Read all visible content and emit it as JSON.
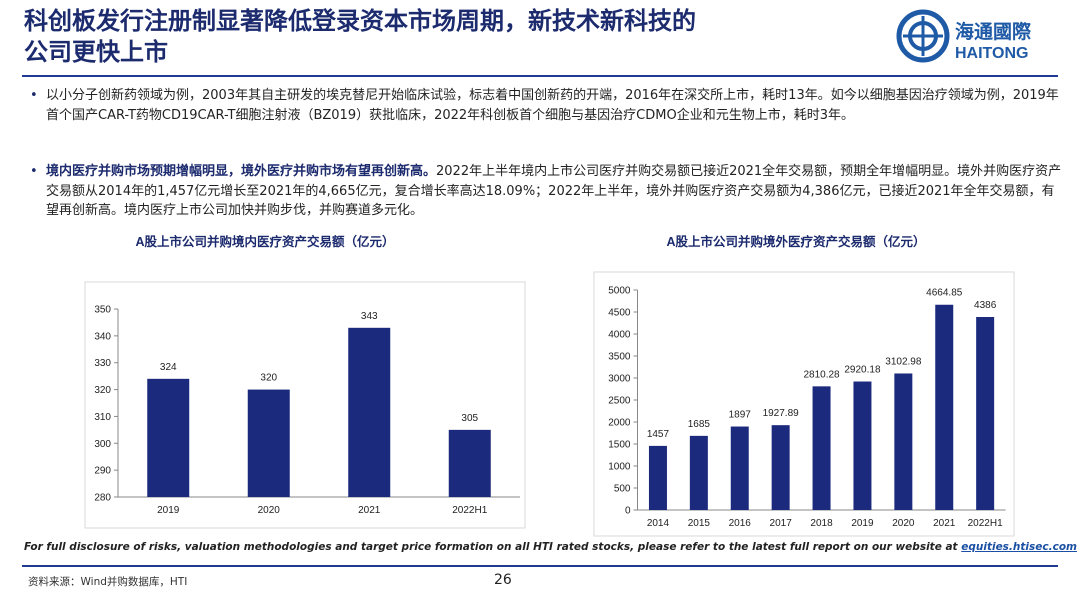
{
  "header": {
    "title_lines": [
      "科创板发行注册制显著降低登录资本市场周期，新技术新科技的",
      "公司更快上市"
    ],
    "logo_cn": "海通國際",
    "logo_en": "HAITONG"
  },
  "bullets": [
    {
      "text": "以小分子创新药领域为例，2003年其自主研发的埃克替尼开始临床试验，标志着中国创新药的开端，2016年在深交所上市，耗时13年。如今以细胞基因治疗领域为例，2019年首个国产CAR-T药物CD19CAR-T细胞注射液（BZ019）获批临床，2022年科创板首个细胞与基因治疗CDMO企业和元生物上市，耗时3年。"
    },
    {
      "bold": "境内医疗并购市场预期增幅明显，境外医疗并购市场有望再创新高。",
      "text": "2022年上半年境内上市公司医疗并购交易额已接近2021全年交易额，预期全年增幅明显。境外并购医疗资产交易额从2014年的1,457亿元增长至2021年的4,665亿元，复合增长率高达18.09%；2022年上半年，境外并购医疗资产交易额为4,386亿元，已接近2021年全年交易额，有望再创新高。境内医疗上市公司加快并购步伐，并购赛道多元化。"
    }
  ],
  "chart_data": [
    {
      "type": "bar",
      "title": "A股上市公司并购境内医疗资产交易额（亿元）",
      "categories": [
        "2019",
        "2020",
        "2021",
        "2022H1"
      ],
      "values": [
        324,
        320,
        343,
        305
      ],
      "color": "#1c2a7e",
      "ylim": [
        280,
        350
      ],
      "yticks": [
        280,
        290,
        300,
        310,
        320,
        330,
        340,
        350
      ]
    },
    {
      "type": "bar",
      "title": "A股上市公司并购境外医疗资产交易额（亿元）",
      "categories": [
        "2014",
        "2015",
        "2016",
        "2017",
        "2018",
        "2019",
        "2020",
        "2021",
        "2022H1"
      ],
      "values": [
        1457,
        1685,
        1897,
        1927.89,
        2810.28,
        2920.18,
        3102.98,
        4664.85,
        4386
      ],
      "color": "#1c2a7e",
      "ylim": [
        0,
        5000
      ],
      "yticks": [
        0,
        500,
        1000,
        1500,
        2000,
        2500,
        3000,
        3500,
        4000,
        4500,
        5000
      ]
    }
  ],
  "footer": {
    "disclaimer": "For full disclosure of risks, valuation methodologies and target price formation on all HTI rated stocks, please refer to the latest full report on our website at ",
    "link": "equities.htisec.com",
    "source": "资料来源：Wind并购数据库，HTI",
    "page": 26
  }
}
